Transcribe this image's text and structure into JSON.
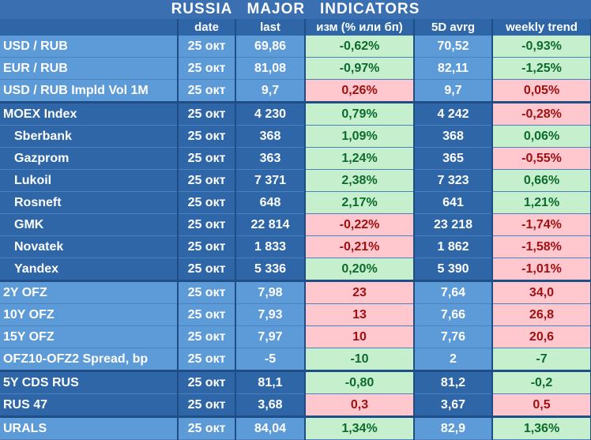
{
  "title": "RUSSIA   MAJOR   INDICATORS",
  "headers": [
    "",
    "date",
    "last",
    "изм (% или бп)",
    "5D avrg",
    "weekly trend"
  ],
  "rows": [
    {
      "label": "USD / RUB",
      "date": "25 окт",
      "last": "69,86",
      "chg": "-0,62%",
      "chg_dir": "pos",
      "avg": "70,52",
      "wk": "-0,93%",
      "wk_dir": "pos",
      "section": "s1",
      "indent": false
    },
    {
      "label": "EUR / RUB",
      "date": "25 окт",
      "last": "81,08",
      "chg": "-0,97%",
      "chg_dir": "pos",
      "avg": "82,11",
      "wk": "-1,25%",
      "wk_dir": "pos",
      "section": "s1",
      "indent": false
    },
    {
      "label": "USD / RUB Impld Vol 1M",
      "date": "25 окт",
      "last": "9,7",
      "chg": "0,26%",
      "chg_dir": "neg",
      "avg": "9,7",
      "wk": "0,05%",
      "wk_dir": "neg",
      "section": "s1",
      "indent": false
    },
    {
      "label": "MOEX Index",
      "date": "25 окт",
      "last": "4 230",
      "chg": "0,79%",
      "chg_dir": "pos",
      "avg": "4 242",
      "wk": "-0,28%",
      "wk_dir": "neg",
      "section": "s2",
      "indent": false
    },
    {
      "label": "Sberbank",
      "date": "25 окт",
      "last": "368",
      "chg": "1,09%",
      "chg_dir": "pos",
      "avg": "368",
      "wk": "0,06%",
      "wk_dir": "pos",
      "section": "s2",
      "indent": true
    },
    {
      "label": "Gazprom",
      "date": "25 окт",
      "last": "363",
      "chg": "1,24%",
      "chg_dir": "pos",
      "avg": "365",
      "wk": "-0,55%",
      "wk_dir": "neg",
      "section": "s2",
      "indent": true
    },
    {
      "label": "Lukoil",
      "date": "25 окт",
      "last": "7 371",
      "chg": "2,38%",
      "chg_dir": "pos",
      "avg": "7 323",
      "wk": "0,66%",
      "wk_dir": "pos",
      "section": "s2",
      "indent": true
    },
    {
      "label": "Rosneft",
      "date": "25 окт",
      "last": "648",
      "chg": "2,17%",
      "chg_dir": "pos",
      "avg": "641",
      "wk": "1,21%",
      "wk_dir": "pos",
      "section": "s2",
      "indent": true
    },
    {
      "label": "GMK",
      "date": "25 окт",
      "last": "22 814",
      "chg": "-0,22%",
      "chg_dir": "neg",
      "avg": "23 218",
      "wk": "-1,74%",
      "wk_dir": "neg",
      "section": "s2",
      "indent": true
    },
    {
      "label": "Novatek",
      "date": "25 окт",
      "last": "1 833",
      "chg": "-0,21%",
      "chg_dir": "neg",
      "avg": "1 862",
      "wk": "-1,58%",
      "wk_dir": "neg",
      "section": "s2",
      "indent": true
    },
    {
      "label": "Yandex",
      "date": "25 окт",
      "last": "5 336",
      "chg": "0,20%",
      "chg_dir": "pos",
      "avg": "5 390",
      "wk": "-1,01%",
      "wk_dir": "neg",
      "section": "s2",
      "indent": true
    },
    {
      "label": "2Y OFZ",
      "date": "25 окт",
      "last": "7,98",
      "chg": "23",
      "chg_dir": "neg",
      "avg": "7,64",
      "wk": "34,0",
      "wk_dir": "neg",
      "section": "s3",
      "indent": false
    },
    {
      "label": "10Y OFZ",
      "date": "25 окт",
      "last": "7,93",
      "chg": "13",
      "chg_dir": "neg",
      "avg": "7,66",
      "wk": "26,8",
      "wk_dir": "neg",
      "section": "s3",
      "indent": false
    },
    {
      "label": "15Y OFZ",
      "date": "25 окт",
      "last": "7,97",
      "chg": "10",
      "chg_dir": "neg",
      "avg": "7,76",
      "wk": "20,6",
      "wk_dir": "neg",
      "section": "s3",
      "indent": false
    },
    {
      "label": "OFZ10-OFZ2 Spread, bp",
      "date": "25 окт",
      "last": "-5",
      "chg": "-10",
      "chg_dir": "pos",
      "avg": "2",
      "wk": "-7",
      "wk_dir": "pos",
      "section": "s3",
      "indent": false
    },
    {
      "label": "5Y CDS RUS",
      "date": "25 окт",
      "last": "81,1",
      "chg": "-0,80",
      "chg_dir": "pos",
      "avg": "81,2",
      "wk": "-0,2",
      "wk_dir": "pos",
      "section": "s4",
      "indent": false
    },
    {
      "label": "RUS 47",
      "date": "25 окт",
      "last": "3,68",
      "chg": "0,3",
      "chg_dir": "neg",
      "avg": "3,67",
      "wk": "0,5",
      "wk_dir": "neg",
      "section": "s4",
      "indent": false
    },
    {
      "label": "URALS",
      "date": "25 окт",
      "last": "84,04",
      "chg": "1,34%",
      "chg_dir": "pos",
      "avg": "82,9",
      "wk": "1,36%",
      "wk_dir": "pos",
      "section": "s5",
      "indent": false
    }
  ],
  "colors": {
    "positive_bg": "#c6efce",
    "positive_text": "#0c6b2b",
    "negative_bg": "#ffc7ce",
    "negative_text": "#a01010",
    "dark_blue": "#2f66a8",
    "light_blue": "#5d9ad8"
  }
}
